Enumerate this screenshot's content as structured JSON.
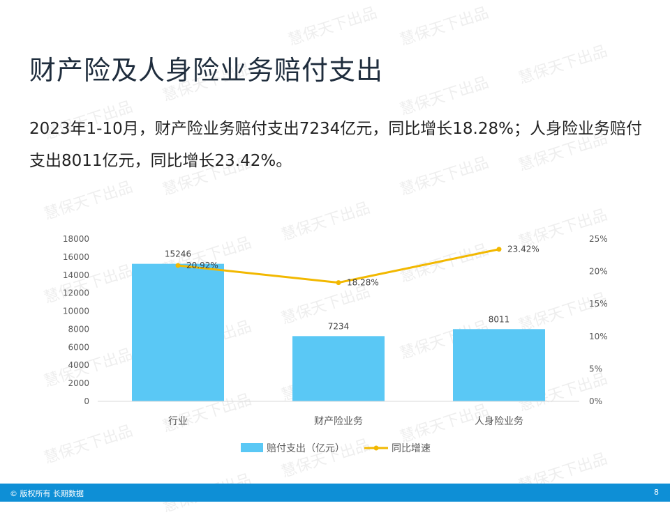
{
  "slide": {
    "title": "财产险及人身险业务赔付支出",
    "summary": "2023年1-10月，财产险业务赔付支出7234亿元，同比增长18.28%；人身险业务赔付支出8011亿元，同比增长23.42%。",
    "watermark": "慧保天下出品",
    "footer_copyright": "© 版权所有 长期数据",
    "page_number": "8"
  },
  "colors": {
    "bar": "#5ac8f5",
    "line": "#f2b800",
    "footer": "#0e8fd6"
  },
  "chart_data": {
    "type": "bar",
    "categories": [
      "行业",
      "财产险业务",
      "人身险业务"
    ],
    "series": [
      {
        "name": "赔付支出（亿元）",
        "type": "bar",
        "axis": "left",
        "values": [
          15246,
          7234,
          8011
        ],
        "labels": [
          "15246",
          "7234",
          "8011"
        ]
      },
      {
        "name": "同比增速",
        "type": "line",
        "axis": "right",
        "values": [
          20.92,
          18.28,
          23.42
        ],
        "labels": [
          "20.92%",
          "18.28%",
          "23.42%"
        ]
      }
    ],
    "ylim": [
      0,
      18000
    ],
    "yticks": [
      "0",
      "2000",
      "4000",
      "6000",
      "8000",
      "10000",
      "12000",
      "14000",
      "16000",
      "18000"
    ],
    "y2lim": [
      0,
      25
    ],
    "y2ticks": [
      "0%",
      "5%",
      "10%",
      "15%",
      "20%",
      "25%"
    ],
    "grid": false,
    "legend": "bottom"
  }
}
